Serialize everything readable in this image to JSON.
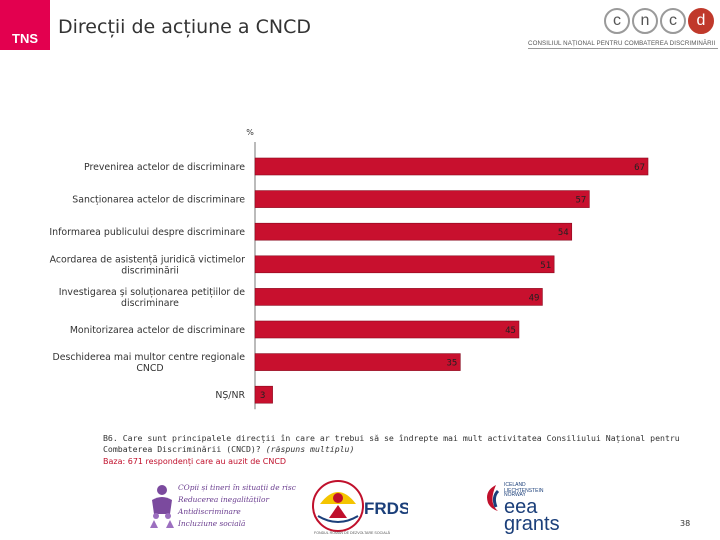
{
  "header": {
    "tns_logo": "TNS",
    "title": "Direcții de acțiune a CNCD",
    "cncd_letters": [
      "c",
      "n",
      "c",
      "d"
    ],
    "cncd_subtitle": "CONSILIUL NAȚIONAL PENTRU COMBATEREA DISCRIMINĂRII"
  },
  "colors": {
    "bar": "#c8102e",
    "bar_edge": "#8a0a1f",
    "tns": "#e3004f",
    "baseline": "#777777"
  },
  "chart_data": {
    "type": "bar",
    "orientation": "horizontal",
    "unit_label": "%",
    "categories": [
      [
        "Prevenirea actelor de discriminare"
      ],
      [
        "Sancționarea actelor de discriminare"
      ],
      [
        "Informarea publicului despre discriminare"
      ],
      [
        "Acordarea de asistență juridică victimelor",
        "discriminării"
      ],
      [
        "Investigarea și soluționarea petițiilor de",
        "discriminare"
      ],
      [
        "Monitorizarea actelor de discriminare"
      ],
      [
        "Deschiderea mai multor centre regionale",
        "CNCD"
      ],
      [
        "NȘ/NR"
      ]
    ],
    "values": [
      67,
      57,
      54,
      51,
      49,
      45,
      35,
      3
    ],
    "xlim": [
      0,
      67
    ]
  },
  "question": {
    "text": "B6. Care sunt principalele direcții în care ar trebui să se îndrepte mai mult activitatea Consiliului Național pentru Combaterea Discriminării (CNCD)?",
    "note": "(răspuns multiplu)",
    "base": "Baza: 671 respondenți care au auzit de CNCD"
  },
  "footer": {
    "logo1_lines": [
      "COpii și tineri în situații de risc",
      "Reducerea inegalităților",
      "Antidiscriminare",
      "Incluziune socială"
    ],
    "logo2_text": "FRDS",
    "logo2_sub": "FONDUL ROMÂN DE DEZVOLTARE SOCIALĂ",
    "logo3_small": [
      "ICELAND",
      "LIECHTENSTEIN",
      "NORWAY"
    ],
    "logo3_big": [
      "eea",
      "grants"
    ],
    "page_number": "38"
  }
}
